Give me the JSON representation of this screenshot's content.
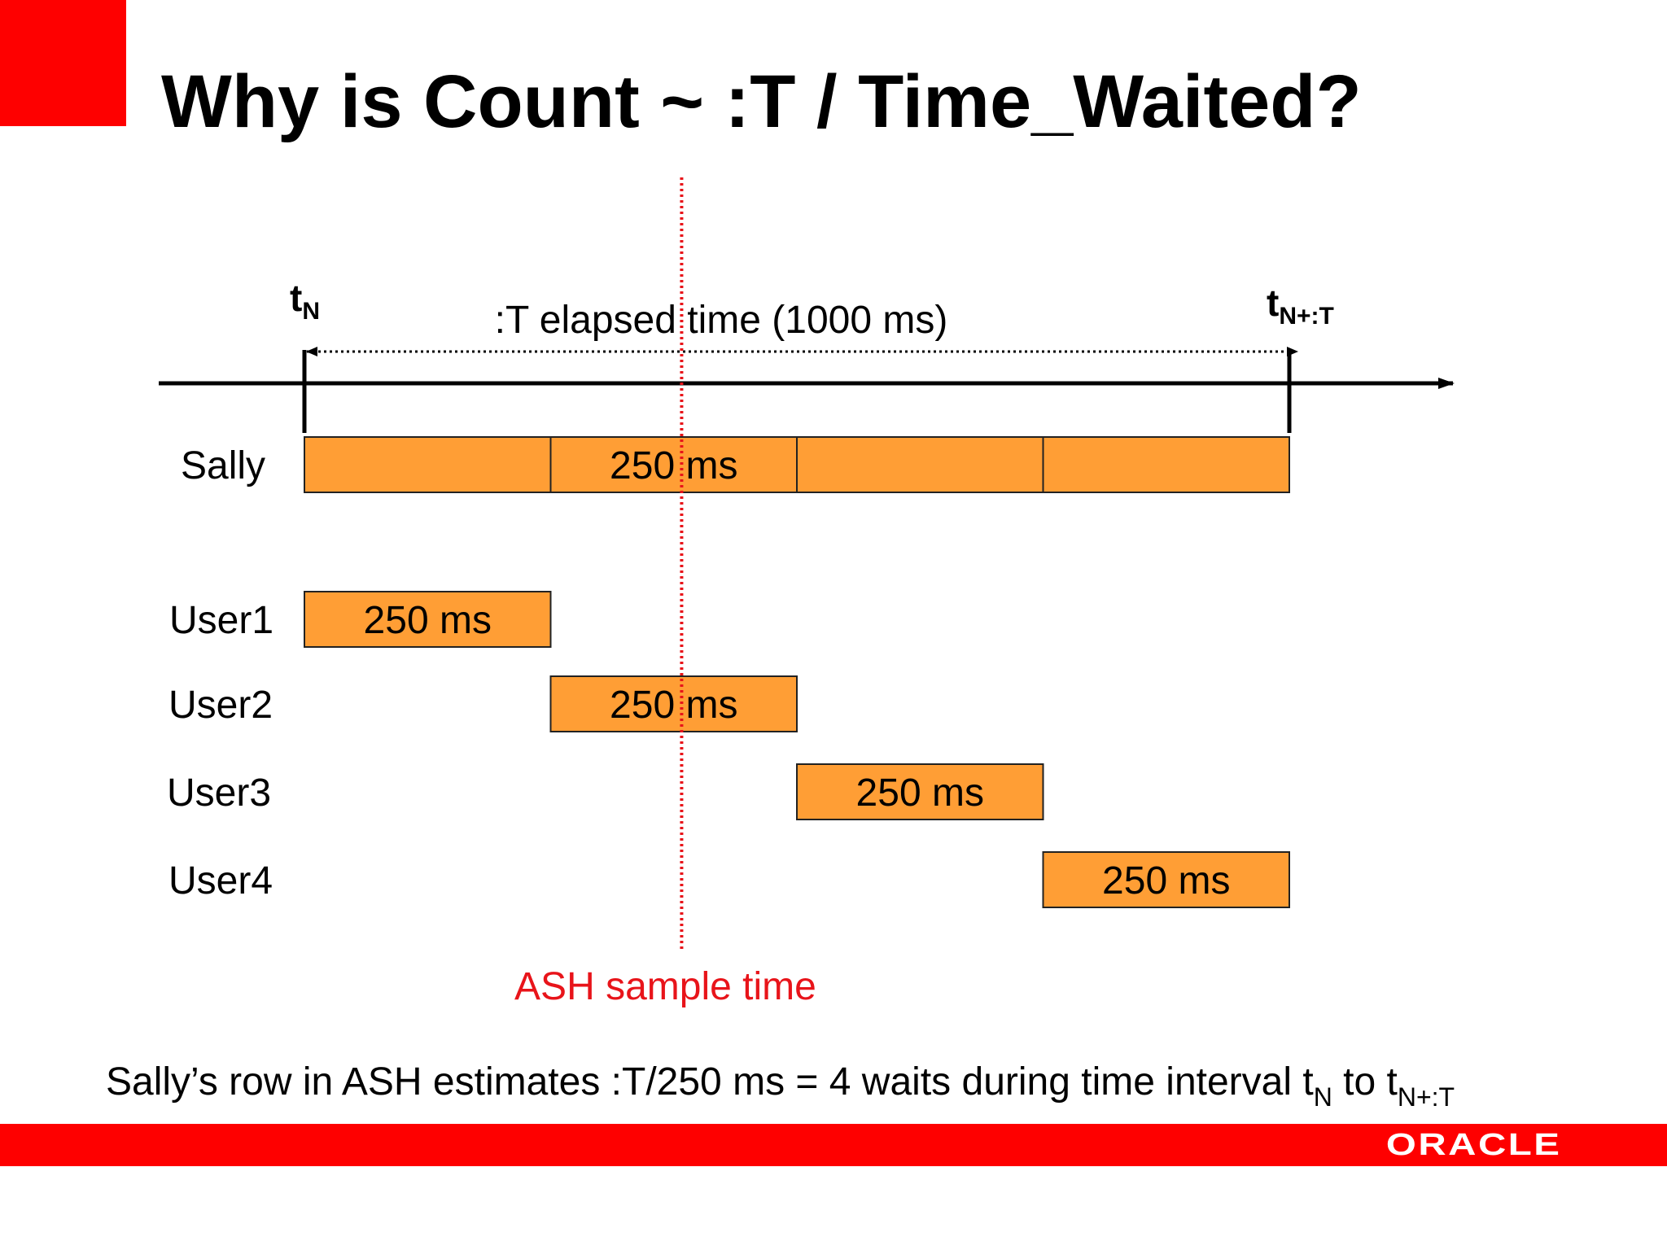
{
  "title": "Why is Count ~ :T / Time_Waited?",
  "timeline": {
    "start_label": {
      "base": "t",
      "sub": "N"
    },
    "end_label": {
      "base": "t",
      "sub": "N+:T"
    },
    "elapsed_label": ":T elapsed time (1000 ms)",
    "total_ms": 1000
  },
  "sample": {
    "label": "ASH sample time",
    "time_ms": 383,
    "color": "#e8141a"
  },
  "bar_style": {
    "fill": "#ff9e35",
    "stroke": "#222222"
  },
  "rows": [
    {
      "name": "Sally",
      "segments": [
        {
          "start_ms": 0,
          "duration_ms": 250,
          "label": ""
        },
        {
          "start_ms": 250,
          "duration_ms": 250,
          "label": "250 ms"
        },
        {
          "start_ms": 500,
          "duration_ms": 250,
          "label": ""
        },
        {
          "start_ms": 750,
          "duration_ms": 250,
          "label": ""
        }
      ]
    },
    {
      "name": "User1",
      "segments": [
        {
          "start_ms": 0,
          "duration_ms": 250,
          "label": "250 ms"
        }
      ]
    },
    {
      "name": "User2",
      "segments": [
        {
          "start_ms": 250,
          "duration_ms": 250,
          "label": "250 ms"
        }
      ]
    },
    {
      "name": "User3",
      "segments": [
        {
          "start_ms": 500,
          "duration_ms": 250,
          "label": "250 ms"
        }
      ]
    },
    {
      "name": "User4",
      "segments": [
        {
          "start_ms": 750,
          "duration_ms": 250,
          "label": "250 ms"
        }
      ]
    }
  ],
  "caption": {
    "text": "Sally’s row in ASH estimates :T/250 ms = 4 waits during time interval ",
    "from_base": "t",
    "from_sub": "N",
    "middle": " to ",
    "to_base": "t",
    "to_sub": "N+:T"
  },
  "footer": {
    "brand": "ORACLE",
    "brand_color": "#fe0000"
  }
}
